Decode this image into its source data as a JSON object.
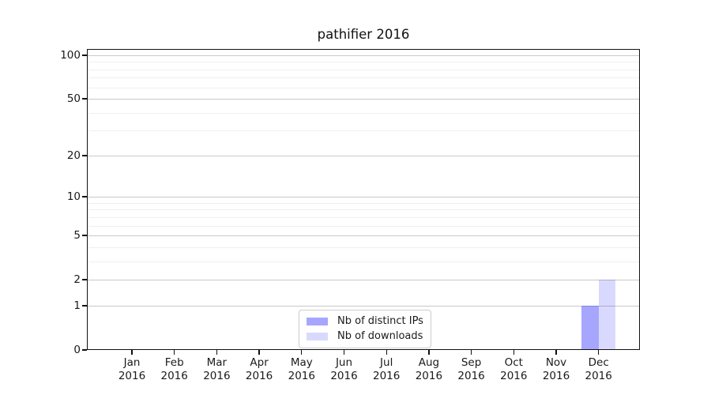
{
  "chart_data": {
    "type": "bar",
    "title": "pathifier 2016",
    "categories": [
      {
        "month": "Jan",
        "year": "2016"
      },
      {
        "month": "Feb",
        "year": "2016"
      },
      {
        "month": "Mar",
        "year": "2016"
      },
      {
        "month": "Apr",
        "year": "2016"
      },
      {
        "month": "May",
        "year": "2016"
      },
      {
        "month": "Jun",
        "year": "2016"
      },
      {
        "month": "Jul",
        "year": "2016"
      },
      {
        "month": "Aug",
        "year": "2016"
      },
      {
        "month": "Sep",
        "year": "2016"
      },
      {
        "month": "Oct",
        "year": "2016"
      },
      {
        "month": "Nov",
        "year": "2016"
      },
      {
        "month": "Dec",
        "year": "2016"
      }
    ],
    "series": [
      {
        "name": "Nb of distinct IPs",
        "color": "rgba(0,0,255,0.35)",
        "values": [
          0,
          0,
          0,
          0,
          0,
          0,
          0,
          0,
          0,
          0,
          0,
          1
        ]
      },
      {
        "name": "Nb of downloads",
        "color": "rgba(0,0,255,0.15)",
        "values": [
          0,
          0,
          0,
          0,
          0,
          0,
          0,
          0,
          0,
          0,
          0,
          2
        ]
      }
    ],
    "y_axis": {
      "scale": "log1p",
      "ticks": [
        0,
        1,
        2,
        5,
        10,
        20,
        50,
        100
      ],
      "minor_ticks": [
        3,
        4,
        6,
        7,
        8,
        9,
        30,
        40,
        60,
        70,
        80,
        90
      ],
      "ylim": [
        0,
        111
      ]
    },
    "legend": {
      "position": "lower-center"
    },
    "grid": true,
    "colors": {
      "major_grid": "#c9c9c9",
      "minor_grid": "#efefef",
      "axis": "#111111",
      "text": "#1a1a1a"
    }
  }
}
